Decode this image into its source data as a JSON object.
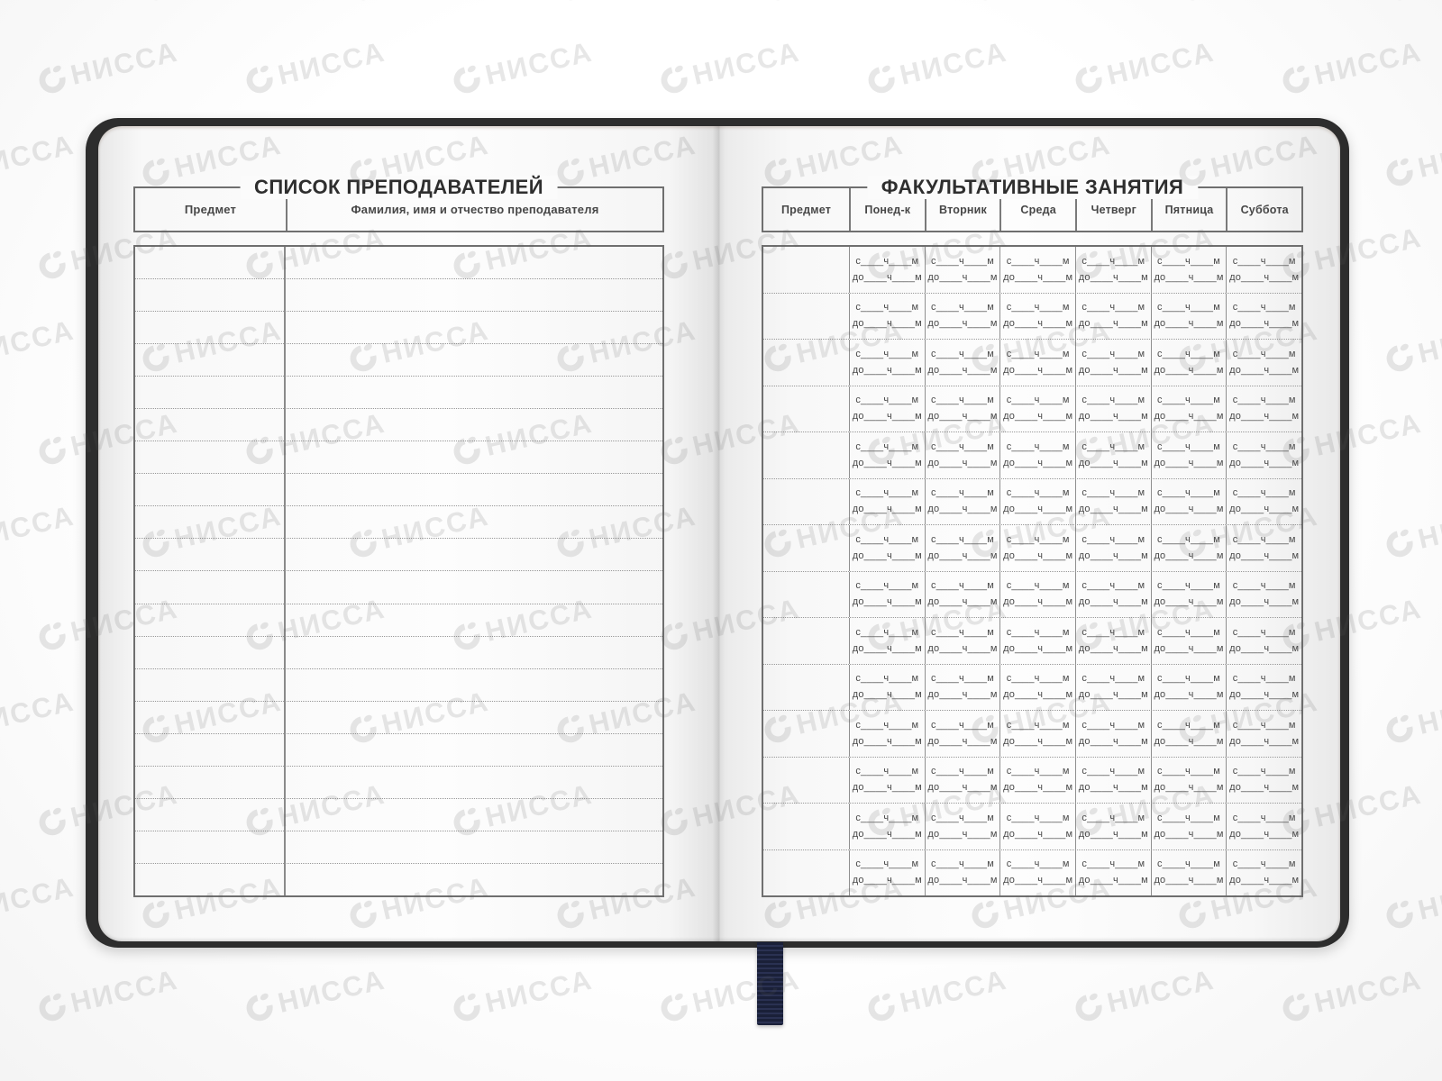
{
  "watermark": {
    "brand": "НИССА"
  },
  "colors": {
    "cover": "#2d2d2d",
    "ribbon": "#1a2038",
    "table_border": "#6f6f6f"
  },
  "left_page": {
    "title": "СПИСОК ПРЕПОДАВАТЕЛЕЙ",
    "columns": [
      "Предмет",
      "Фамилия, имя и отчество преподавателя"
    ],
    "rows": 20
  },
  "right_page": {
    "title": "ФАКУЛЬТАТИВНЫЕ ЗАНЯТИЯ",
    "columns": [
      "Предмет",
      "Понед-к",
      "Вторник",
      "Среда",
      "Четверг",
      "Пятница",
      "Суббота"
    ],
    "rows": 14,
    "cell_line1": "с____ч____м",
    "cell_line2": "до____ч____м"
  }
}
